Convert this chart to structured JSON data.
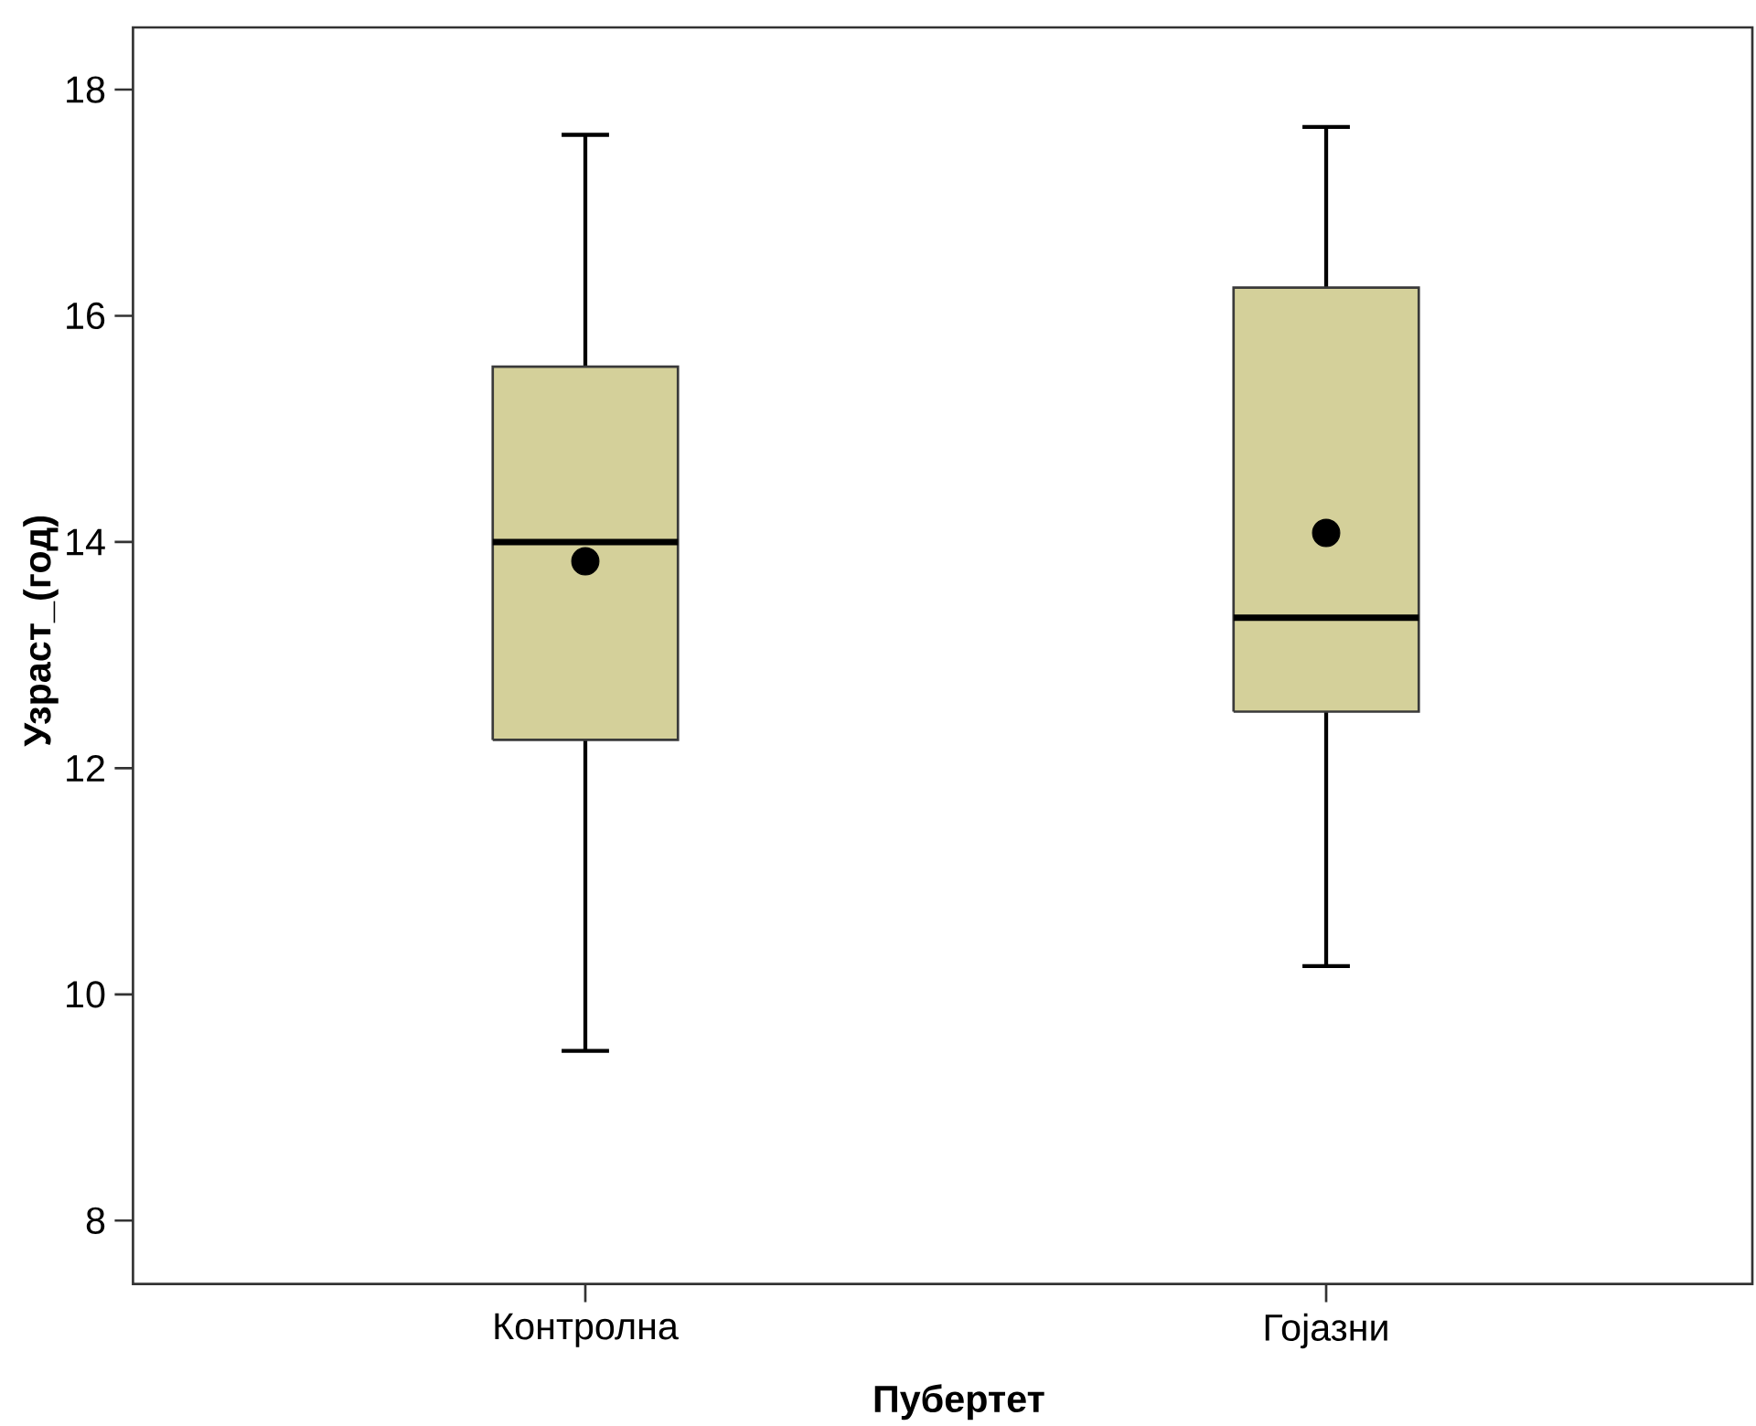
{
  "chart_data": {
    "type": "box",
    "xlabel": "Пубертет",
    "ylabel": "Узраст_(год)",
    "categories": [
      "Контролна",
      "Гојазни"
    ],
    "boxes": [
      {
        "low": 9.5,
        "q1": 12.25,
        "median": 14.0,
        "q3": 15.55,
        "high": 17.6,
        "mean": 13.83
      },
      {
        "low": 10.25,
        "q1": 12.5,
        "median": 13.33,
        "q3": 16.25,
        "high": 17.67,
        "mean": 14.08
      }
    ],
    "color": "#d4d09a",
    "ylim": [
      7.44,
      18.55
    ],
    "yticks": [
      8,
      10,
      12,
      14,
      16,
      18
    ]
  }
}
